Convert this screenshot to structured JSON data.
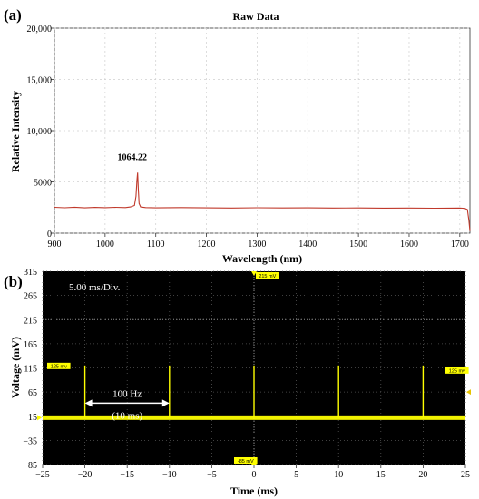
{
  "chart_data": [
    {
      "panel": "(a)",
      "type": "line",
      "title": "Raw Data",
      "xlabel": "Wavelength (nm)",
      "ylabel": "Relative Intensity",
      "xlim": [
        900,
        1720
      ],
      "ylim": [
        0,
        20000
      ],
      "x_ticks": [
        900,
        1000,
        1100,
        1200,
        1300,
        1400,
        1500,
        1600,
        1700
      ],
      "y_ticks": [
        0,
        5000,
        10000,
        15000,
        20000
      ],
      "y_tick_labels": [
        "0",
        "5000",
        "10,000",
        "15,000",
        "20,000"
      ],
      "grid": true,
      "series": [
        {
          "color": "#c0392b",
          "x": [
            900,
            920,
            940,
            960,
            980,
            1000,
            1020,
            1040,
            1050,
            1058,
            1061,
            1063,
            1064.22,
            1065.5,
            1067,
            1070,
            1080,
            1100,
            1150,
            1200,
            1250,
            1300,
            1350,
            1400,
            1450,
            1500,
            1550,
            1600,
            1650,
            1700,
            1710,
            1715,
            1718,
            1720
          ],
          "y": [
            2520,
            2480,
            2530,
            2470,
            2510,
            2490,
            2520,
            2500,
            2560,
            2700,
            3600,
            5200,
            5900,
            4400,
            2900,
            2560,
            2500,
            2470,
            2500,
            2470,
            2450,
            2480,
            2460,
            2470,
            2450,
            2460,
            2440,
            2450,
            2430,
            2450,
            2420,
            2300,
            1200,
            200
          ]
        }
      ],
      "annotations": [
        {
          "text": "1064.22",
          "x": 1064.22,
          "y": 5900
        }
      ]
    },
    {
      "panel": "(b)",
      "type": "line",
      "xlabel": "Time (ms)",
      "ylabel": "Voltage (mV)",
      "xlim": [
        -25,
        25
      ],
      "ylim": [
        -85,
        315
      ],
      "x_ticks": [
        -25,
        -20,
        -15,
        -10,
        -5,
        0,
        5,
        10,
        15,
        20,
        25
      ],
      "x_tick_labels": [
        "−25",
        "−20",
        "−15",
        "−10",
        "−5",
        "0",
        "5",
        "10",
        "15",
        "20",
        "25"
      ],
      "y_ticks": [
        -85,
        -35,
        15,
        65,
        115,
        165,
        215,
        265,
        315
      ],
      "y_tick_labels": [
        "−85",
        "−35",
        "15",
        "65",
        "115",
        "165",
        "215",
        "265",
        "315"
      ],
      "grid": true,
      "background": "#000000",
      "trace_color": "#ffff00",
      "baseline_mV": 12,
      "pulse_peak_mV": 120,
      "pulse_times_ms": [
        -20,
        -10,
        0,
        10,
        20
      ],
      "timebase_label": "5.00 ms/Div.",
      "annotation": {
        "line1": "100 Hz",
        "line2": "(10 ms)",
        "from_ms": -20,
        "to_ms": -10,
        "y_mV": 42
      },
      "markers": {
        "top": "215 mV",
        "left": "125 mv",
        "right": "125 mv",
        "bottom": "-85 mV"
      }
    }
  ],
  "labels": {
    "panel_a": "(a)",
    "panel_b": "(b)"
  }
}
